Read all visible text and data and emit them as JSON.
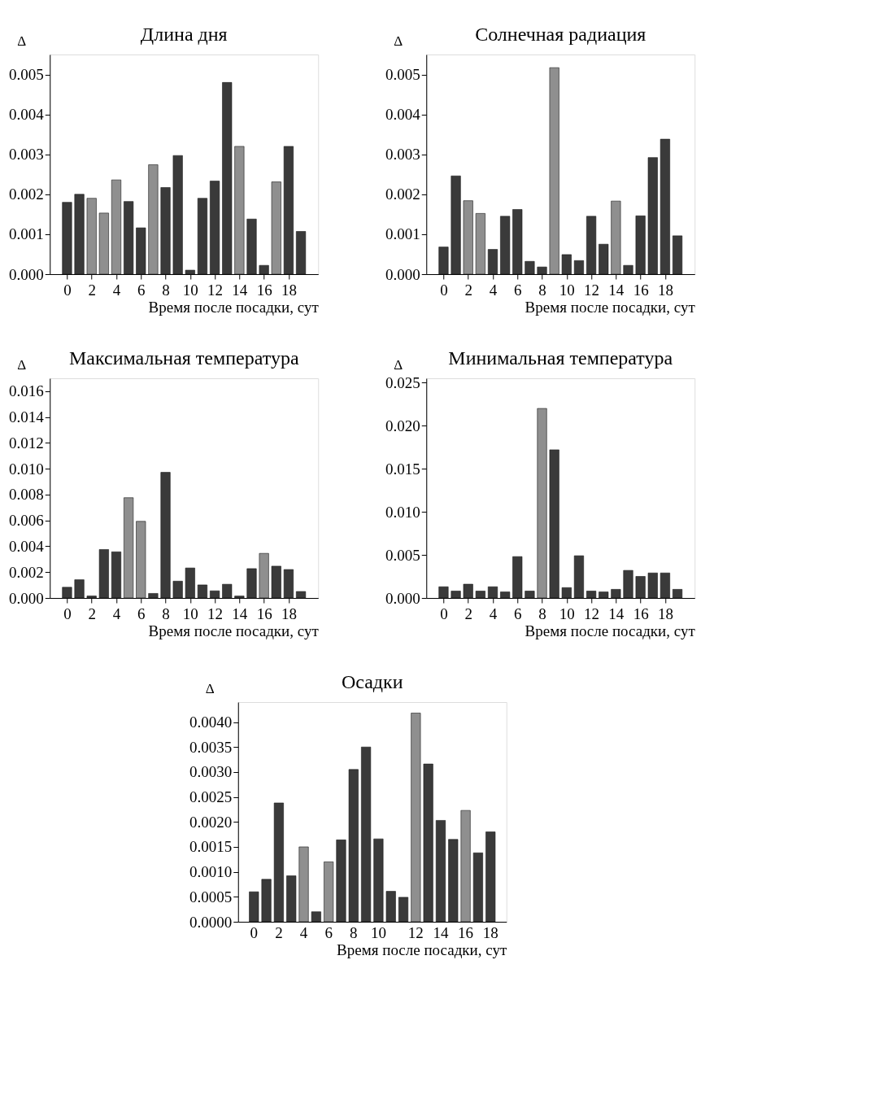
{
  "chart_data": [
    {
      "type": "bar",
      "title": "Длина дня",
      "xlabel": "Время после посадки, сут",
      "ylabel": "Δ",
      "x": [
        0,
        1,
        2,
        3,
        4,
        5,
        6,
        7,
        8,
        9,
        10,
        11,
        12,
        13,
        14,
        15,
        16,
        17,
        18,
        19
      ],
      "values": [
        0.0018,
        0.002,
        0.0019,
        0.00153,
        0.00236,
        0.00182,
        0.00116,
        0.00274,
        0.00217,
        0.00297,
        0.0001,
        0.0019,
        0.00233,
        0.0048,
        0.0032,
        0.00138,
        0.00022,
        0.00231,
        0.0032,
        0.00107
      ],
      "colors": [
        "#3a3a3a",
        "#3a3a3a",
        "#8f8f8f",
        "#8f8f8f",
        "#8f8f8f",
        "#3a3a3a",
        "#3a3a3a",
        "#8f8f8f",
        "#3a3a3a",
        "#3a3a3a",
        "#3a3a3a",
        "#3a3a3a",
        "#3a3a3a",
        "#3a3a3a",
        "#8f8f8f",
        "#3a3a3a",
        "#3a3a3a",
        "#8f8f8f",
        "#3a3a3a",
        "#3a3a3a"
      ],
      "xlim": [
        -1.4,
        20.4
      ],
      "xticks": [
        0,
        2,
        4,
        6,
        8,
        10,
        12,
        14,
        16,
        18
      ],
      "ylim": [
        0,
        0.0055
      ],
      "yticks": [
        {
          "value": 0,
          "label": "0.000"
        },
        {
          "value": 0.001,
          "label": "0.001"
        },
        {
          "value": 0.002,
          "label": "0.002"
        },
        {
          "value": 0.003,
          "label": "0.003"
        },
        {
          "value": 0.004,
          "label": "0.004"
        },
        {
          "value": 0.005,
          "label": "0.005"
        }
      ],
      "grid": false
    },
    {
      "type": "bar",
      "title": "Солнечная радиация",
      "xlabel": "Время после посадки, сут",
      "ylabel": "Δ",
      "x": [
        0,
        1,
        2,
        3,
        4,
        5,
        6,
        7,
        8,
        9,
        10,
        11,
        12,
        13,
        14,
        15,
        16,
        17,
        18,
        19
      ],
      "values": [
        0.00068,
        0.00246,
        0.00184,
        0.00152,
        0.00062,
        0.00145,
        0.00162,
        0.00032,
        0.00018,
        0.00517,
        0.00049,
        0.00034,
        0.00145,
        0.00075,
        0.00183,
        0.00022,
        0.00146,
        0.00292,
        0.00338,
        0.00096
      ],
      "colors": [
        "#3a3a3a",
        "#3a3a3a",
        "#8f8f8f",
        "#8f8f8f",
        "#3a3a3a",
        "#3a3a3a",
        "#3a3a3a",
        "#3a3a3a",
        "#3a3a3a",
        "#8f8f8f",
        "#3a3a3a",
        "#3a3a3a",
        "#3a3a3a",
        "#3a3a3a",
        "#8f8f8f",
        "#3a3a3a",
        "#3a3a3a",
        "#3a3a3a",
        "#3a3a3a",
        "#3a3a3a"
      ],
      "xlim": [
        -1.4,
        20.4
      ],
      "xticks": [
        0,
        2,
        4,
        6,
        8,
        10,
        12,
        14,
        16,
        18
      ],
      "ylim": [
        0,
        0.0055
      ],
      "yticks": [
        {
          "value": 0,
          "label": "0.000"
        },
        {
          "value": 0.001,
          "label": "0.001"
        },
        {
          "value": 0.002,
          "label": "0.002"
        },
        {
          "value": 0.003,
          "label": "0.003"
        },
        {
          "value": 0.004,
          "label": "0.004"
        },
        {
          "value": 0.005,
          "label": "0.005"
        }
      ],
      "grid": false
    },
    {
      "type": "bar",
      "title": "Максимальная температура",
      "xlabel": "Время после посадки, сут",
      "ylabel": "Δ",
      "x": [
        0,
        1,
        2,
        3,
        4,
        5,
        6,
        7,
        8,
        9,
        10,
        11,
        12,
        13,
        14,
        15,
        16,
        17,
        18,
        19
      ],
      "values": [
        0.00083,
        0.00141,
        0.00015,
        0.00375,
        0.00357,
        0.00776,
        0.00593,
        0.00035,
        0.00972,
        0.0013,
        0.00232,
        0.00101,
        0.00055,
        0.00106,
        0.00015,
        0.00227,
        0.00345,
        0.00246,
        0.0022,
        0.0005
      ],
      "colors": [
        "#3a3a3a",
        "#3a3a3a",
        "#3a3a3a",
        "#3a3a3a",
        "#3a3a3a",
        "#8f8f8f",
        "#8f8f8f",
        "#3a3a3a",
        "#3a3a3a",
        "#3a3a3a",
        "#3a3a3a",
        "#3a3a3a",
        "#3a3a3a",
        "#3a3a3a",
        "#3a3a3a",
        "#3a3a3a",
        "#8f8f8f",
        "#3a3a3a",
        "#3a3a3a",
        "#3a3a3a"
      ],
      "xlim": [
        -1.4,
        20.4
      ],
      "xticks": [
        0,
        2,
        4,
        6,
        8,
        10,
        12,
        14,
        16,
        18
      ],
      "ylim": [
        0,
        0.017
      ],
      "yticks": [
        {
          "value": 0,
          "label": "0.000"
        },
        {
          "value": 0.002,
          "label": "0.002"
        },
        {
          "value": 0.004,
          "label": "0.004"
        },
        {
          "value": 0.006,
          "label": "0.006"
        },
        {
          "value": 0.008,
          "label": "0.008"
        },
        {
          "value": 0.01,
          "label": "0.010"
        },
        {
          "value": 0.012,
          "label": "0.012"
        },
        {
          "value": 0.014,
          "label": "0.014"
        },
        {
          "value": 0.016,
          "label": "0.016"
        }
      ],
      "grid": false
    },
    {
      "type": "bar",
      "title": "Минимальная температура",
      "xlabel": "Время после посадки, сут",
      "ylabel": "Δ",
      "x": [
        0,
        1,
        2,
        3,
        4,
        5,
        6,
        7,
        8,
        9,
        10,
        11,
        12,
        13,
        14,
        15,
        16,
        17,
        18,
        19
      ],
      "values": [
        0.0013,
        0.0008,
        0.0016,
        0.0008,
        0.0013,
        0.0007,
        0.0048,
        0.0008,
        0.022,
        0.0172,
        0.0012,
        0.0049,
        0.0008,
        0.0007,
        0.001,
        0.0032,
        0.0025,
        0.0029,
        0.0029,
        0.001
      ],
      "colors": [
        "#3a3a3a",
        "#3a3a3a",
        "#3a3a3a",
        "#3a3a3a",
        "#3a3a3a",
        "#3a3a3a",
        "#3a3a3a",
        "#3a3a3a",
        "#8f8f8f",
        "#3a3a3a",
        "#3a3a3a",
        "#3a3a3a",
        "#3a3a3a",
        "#3a3a3a",
        "#3a3a3a",
        "#3a3a3a",
        "#3a3a3a",
        "#3a3a3a",
        "#3a3a3a",
        "#3a3a3a"
      ],
      "xlim": [
        -1.4,
        20.4
      ],
      "xticks": [
        0,
        2,
        4,
        6,
        8,
        10,
        12,
        14,
        16,
        18
      ],
      "ylim": [
        0,
        0.0255
      ],
      "yticks": [
        {
          "value": 0,
          "label": "0.000"
        },
        {
          "value": 0.005,
          "label": "0.005"
        },
        {
          "value": 0.01,
          "label": "0.010"
        },
        {
          "value": 0.015,
          "label": "0.015"
        },
        {
          "value": 0.02,
          "label": "0.020"
        },
        {
          "value": 0.025,
          "label": "0.025"
        }
      ],
      "grid": false
    },
    {
      "type": "bar",
      "title": "Осадки",
      "xlabel": "Время после посадки, сут",
      "ylabel": "Δ",
      "categories": [
        "0",
        null,
        "2",
        null,
        "4",
        null,
        "6",
        null,
        "8",
        null,
        "10",
        null,
        null,
        "12",
        null,
        "14",
        null,
        "16",
        null,
        "18"
      ],
      "values": [
        0.0006,
        0.00085,
        0.00238,
        0.00092,
        0.0015,
        0.0002,
        0.0012,
        0.00164,
        0.00305,
        0.0035,
        0.00166,
        0.00061,
        0.00049,
        0.00418,
        0.00316,
        0.00203,
        0.00165,
        0.00223,
        0.00138,
        0.0018
      ],
      "colors": [
        "#3a3a3a",
        "#3a3a3a",
        "#3a3a3a",
        "#3a3a3a",
        "#8f8f8f",
        "#3a3a3a",
        "#8f8f8f",
        "#3a3a3a",
        "#3a3a3a",
        "#3a3a3a",
        "#3a3a3a",
        "#3a3a3a",
        "#3a3a3a",
        "#8f8f8f",
        "#3a3a3a",
        "#3a3a3a",
        "#3a3a3a",
        "#8f8f8f",
        "#3a3a3a",
        "#3a3a3a"
      ],
      "ylim": [
        0,
        0.0044
      ],
      "yticks": [
        {
          "value": 0,
          "label": "0.0000"
        },
        {
          "value": 0.0005,
          "label": "0.0005"
        },
        {
          "value": 0.001,
          "label": "0.0010"
        },
        {
          "value": 0.0015,
          "label": "0.0015"
        },
        {
          "value": 0.002,
          "label": "0.0020"
        },
        {
          "value": 0.0025,
          "label": "0.0025"
        },
        {
          "value": 0.003,
          "label": "0.0030"
        },
        {
          "value": 0.0035,
          "label": "0.0035"
        },
        {
          "value": 0.004,
          "label": "0.0040"
        }
      ],
      "grid": false
    }
  ]
}
